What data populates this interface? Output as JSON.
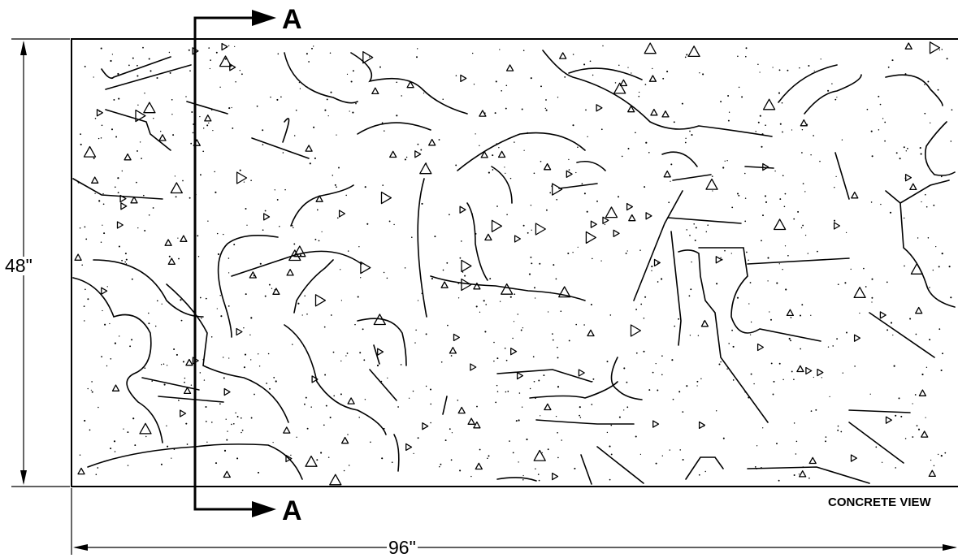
{
  "drawing": {
    "section_marker": "A",
    "height_dimension": "48\"",
    "width_dimension": "96\"",
    "view_caption": "CONCRETE VIEW"
  }
}
